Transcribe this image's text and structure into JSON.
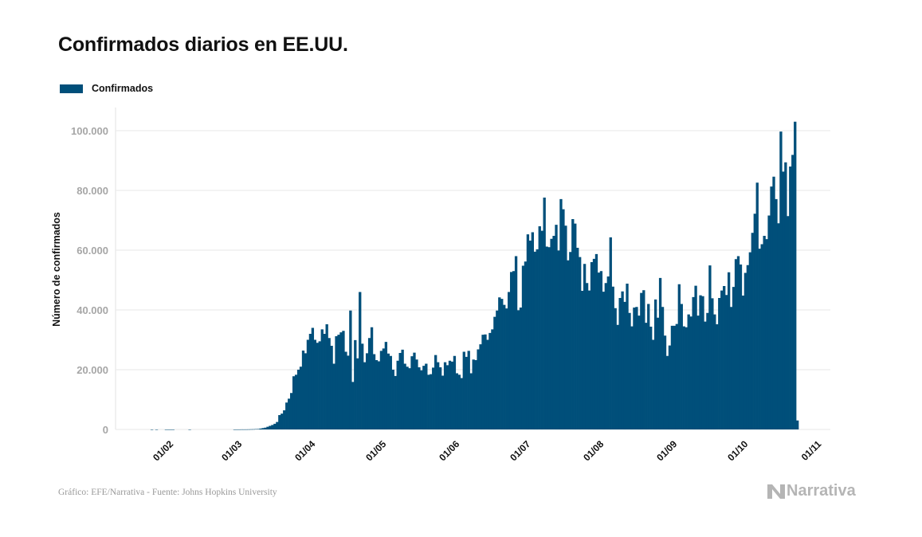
{
  "header": {
    "title": "Confirmados diarios en EE.UU.",
    "legend_label": "Confirmados"
  },
  "footer": {
    "source": "Gráfico: EFE/Narrativa - Fuente: Johns Hopkins University",
    "logo_text": "Narrativa",
    "logo_icon": "narrativa-n-icon"
  },
  "colors": {
    "bar": "#004f7a",
    "grid": "#ececec",
    "tick_text": "#a6a6a6"
  },
  "chart_data": {
    "type": "bar",
    "title": "Confirmados diarios en EE.UU.",
    "xlabel": "",
    "ylabel": "Número de confirmados",
    "ylim": [
      0,
      105000
    ],
    "grid": true,
    "legend": {
      "position": "top-left",
      "entries": [
        "Confirmados"
      ]
    },
    "y_ticks": [
      {
        "value": 0,
        "label": "0"
      },
      {
        "value": 20000,
        "label": "20.000"
      },
      {
        "value": 40000,
        "label": "40.000"
      },
      {
        "value": 60000,
        "label": "60.000"
      },
      {
        "value": 80000,
        "label": "80.000"
      },
      {
        "value": 100000,
        "label": "100.000"
      }
    ],
    "x_start_date": "2020-01-22",
    "x_ticks": [
      {
        "day_index": 10,
        "label": "01/02"
      },
      {
        "day_index": 39,
        "label": "01/03"
      },
      {
        "day_index": 70,
        "label": "01/04"
      },
      {
        "day_index": 100,
        "label": "01/05"
      },
      {
        "day_index": 131,
        "label": "01/06"
      },
      {
        "day_index": 161,
        "label": "01/07"
      },
      {
        "day_index": 192,
        "label": "01/08"
      },
      {
        "day_index": 223,
        "label": "01/09"
      },
      {
        "day_index": 253,
        "label": "01/10"
      },
      {
        "day_index": 284,
        "label": "01/11"
      }
    ],
    "series": [
      {
        "name": "Confirmados",
        "values": [
          0,
          0,
          1,
          0,
          2,
          0,
          0,
          0,
          1,
          1,
          1,
          2,
          0,
          0,
          0,
          0,
          0,
          0,
          1,
          0,
          0,
          0,
          0,
          0,
          0,
          0,
          0,
          0,
          0,
          0,
          0,
          0,
          0,
          0,
          0,
          0,
          0,
          3,
          5,
          8,
          20,
          18,
          25,
          40,
          60,
          80,
          120,
          150,
          300,
          450,
          600,
          900,
          1200,
          1500,
          1900,
          2500,
          4800,
          5300,
          6400,
          9000,
          10300,
          12200,
          17800,
          18300,
          20000,
          21000,
          26400,
          25500,
          30000,
          32000,
          34000,
          30000,
          29000,
          29500,
          33500,
          32000,
          35200,
          30600,
          28000,
          22000,
          31200,
          31700,
          32500,
          33000,
          26000,
          24700,
          39800,
          15900,
          29900,
          23800,
          46000,
          28700,
          22500,
          25500,
          30600,
          34200,
          25200,
          23200,
          22800,
          26300,
          27100,
          29300,
          25400,
          24600,
          20000,
          17900,
          23000,
          25600,
          26700,
          22000,
          21000,
          20500,
          24500,
          25700,
          23400,
          20800,
          19800,
          21300,
          22000,
          18300,
          18500,
          20700,
          24900,
          22500,
          20800,
          18000,
          22500,
          21500,
          23000,
          22700,
          24600,
          18800,
          18300,
          17200,
          26000,
          24300,
          26300,
          18800,
          23400,
          23200,
          26800,
          28500,
          31700,
          31800,
          30000,
          32300,
          33500,
          37700,
          39800,
          44200,
          43700,
          41700,
          40500,
          46000,
          52700,
          53000,
          58000,
          39900,
          40800,
          54800,
          56200,
          65300,
          63200,
          66000,
          59500,
          60300,
          68000,
          66500,
          77600,
          61200,
          61000,
          63800,
          64800,
          68500,
          59900,
          77100,
          73700,
          68200,
          56600,
          59400,
          70400,
          68900,
          60800,
          57700,
          46400,
          55400,
          49000,
          46500,
          56000,
          57100,
          58700,
          52500,
          53000,
          46100,
          49000,
          51200,
          64300,
          47800,
          40600,
          35000,
          44000,
          46200,
          42700,
          48800,
          39000,
          34500,
          40800,
          41000,
          38100,
          45700,
          46600,
          35700,
          42000,
          34400,
          30000,
          43500,
          37400,
          50700,
          41000,
          31400,
          24600,
          28100,
          34700,
          34700,
          35300,
          48600,
          42000,
          34500,
          34200,
          38500,
          37800,
          44300,
          48100,
          38100,
          44900,
          44600,
          36100,
          39000,
          54900,
          43900,
          38500,
          35200,
          44000,
          46500,
          48000,
          45000,
          52600,
          41000,
          47700,
          57000,
          58000,
          55200,
          44800,
          52400,
          55000,
          59300,
          65800,
          72200,
          82600,
          60500,
          62000,
          64800,
          63700,
          71600,
          81300,
          84600,
          77100,
          69000,
          99700,
          86300,
          89400,
          71400,
          88000,
          91900,
          103000,
          3000
        ]
      }
    ]
  }
}
